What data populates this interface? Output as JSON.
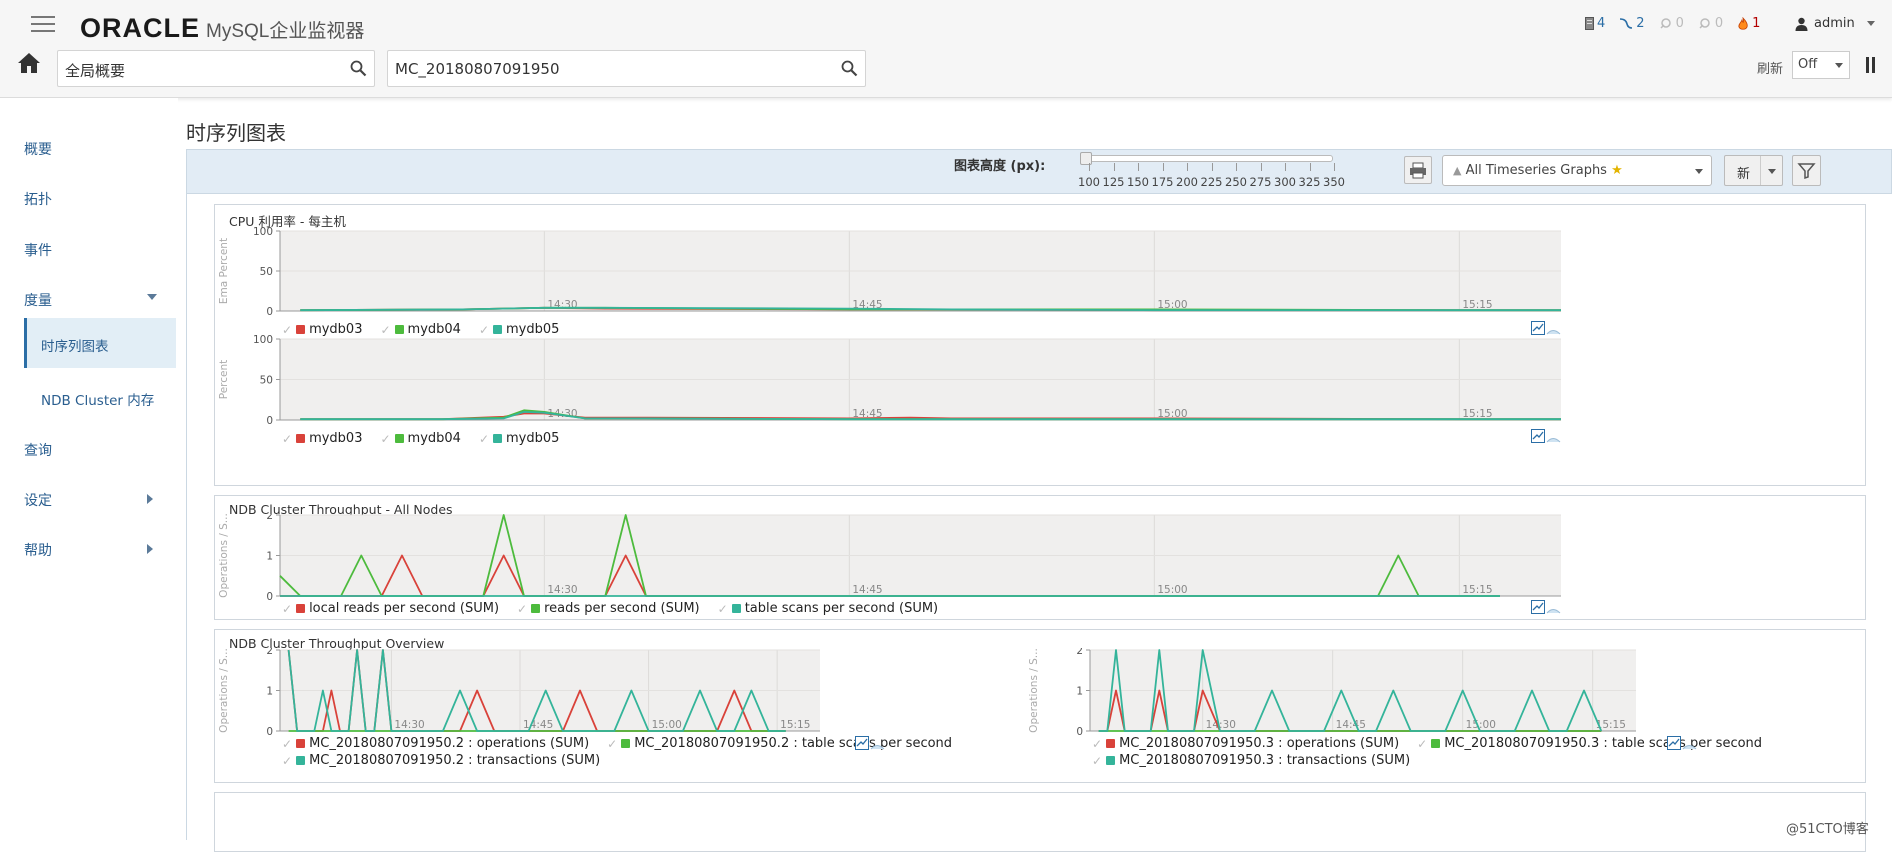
{
  "header": {
    "logo_brand": "ORACLE",
    "logo_product": "MySQL企业监视器",
    "scope_search": "全局概要",
    "group_search": "MC_20180807091950",
    "refresh_label": "刷新",
    "refresh_value": "Off",
    "status": [
      {
        "icon": "server-icon",
        "count": "4"
      },
      {
        "icon": "connection-icon",
        "count": "2"
      },
      {
        "icon": "agent-icon",
        "count": "0"
      },
      {
        "icon": "agent-warning-icon",
        "count": "0"
      },
      {
        "icon": "fire-icon",
        "count": "1"
      }
    ],
    "user": "admin"
  },
  "sidebar": {
    "items": [
      {
        "label": "概要"
      },
      {
        "label": "拓扑"
      },
      {
        "label": "事件"
      },
      {
        "label": "度量"
      },
      {
        "label": "时序列图表"
      },
      {
        "label": "NDB Cluster 内存"
      },
      {
        "label": "查询"
      },
      {
        "label": "设定"
      },
      {
        "label": "帮助"
      }
    ]
  },
  "page": {
    "title": "时序列图表",
    "height_label": "图表高度 (px):",
    "height_ticks": [
      "100",
      "125",
      "150",
      "175",
      "200",
      "225",
      "250",
      "275",
      "300",
      "325",
      "350"
    ],
    "height_value": 100,
    "graph_select": "All Timeseries Graphs",
    "new_button": "新"
  },
  "colors": {
    "red": "#d9423a",
    "green": "#4dbb3d",
    "teal": "#34b49a",
    "plot_bg": "#f0efee",
    "link": "#2a5e8f"
  },
  "watermark": "@51CTO博客",
  "chart_data": [
    {
      "type": "line",
      "title": "CPU 利用率 - 每主机",
      "ylabel": "Ema Percent",
      "ylim": [
        0,
        100
      ],
      "yticks": [
        "0",
        "50",
        "100"
      ],
      "xticks": [
        "14:30",
        "14:45",
        "15:00",
        "15:15"
      ],
      "x": [
        "14:18",
        "14:26",
        "14:30",
        "14:33",
        "14:45",
        "14:50",
        "15:00",
        "15:15",
        "15:20"
      ],
      "series": [
        {
          "name": "mydb03",
          "color": "#d9423a",
          "values": [
            1,
            2,
            4,
            3,
            2,
            2,
            1,
            1,
            1
          ]
        },
        {
          "name": "mydb04",
          "color": "#4dbb3d",
          "values": [
            1,
            2,
            4,
            4,
            2,
            2,
            2,
            1,
            1
          ]
        },
        {
          "name": "mydb05",
          "color": "#34b49a",
          "values": [
            1,
            2,
            4,
            4,
            3,
            2,
            1,
            1,
            1
          ]
        }
      ]
    },
    {
      "type": "line",
      "title": "",
      "ylabel": "Percent",
      "ylim": [
        0,
        100
      ],
      "yticks": [
        "0",
        "50",
        "100"
      ],
      "xticks": [
        "14:30",
        "14:45",
        "15:00",
        "15:15"
      ],
      "x": [
        "14:18",
        "14:25",
        "14:28",
        "14:29",
        "14:30",
        "14:32",
        "14:35",
        "14:45",
        "14:48",
        "14:50",
        "15:00",
        "15:15",
        "15:20"
      ],
      "series": [
        {
          "name": "mydb03",
          "color": "#d9423a",
          "values": [
            1,
            1,
            4,
            8,
            8,
            3,
            3,
            2,
            3,
            2,
            2,
            1,
            1
          ]
        },
        {
          "name": "mydb04",
          "color": "#4dbb3d",
          "values": [
            1,
            1,
            3,
            12,
            10,
            2,
            2,
            1,
            1,
            1,
            1,
            1,
            1
          ]
        },
        {
          "name": "mydb05",
          "color": "#34b49a",
          "values": [
            1,
            1,
            2,
            10,
            9,
            2,
            2,
            1,
            1,
            1,
            1,
            1,
            1
          ]
        }
      ]
    },
    {
      "type": "line",
      "title": "NDB Cluster Throughput - All Nodes",
      "ylabel": "Operations / S...",
      "ylim": [
        0,
        2
      ],
      "yticks": [
        "0",
        "1",
        "2"
      ],
      "xticks": [
        "14:30",
        "14:45",
        "15:00",
        "15:15"
      ],
      "x": [
        "14:17",
        "14:18",
        "14:20",
        "14:21",
        "14:22",
        "14:23",
        "14:24",
        "14:25",
        "14:26",
        "14:27",
        "14:28",
        "14:29",
        "14:30",
        "14:33",
        "14:34",
        "14:35",
        "14:36",
        "14:43",
        "14:44",
        "15:11",
        "15:12",
        "15:13",
        "15:17"
      ],
      "series": [
        {
          "name": "local reads per second (SUM)",
          "color": "#d9423a",
          "values": [
            0,
            0,
            0,
            0,
            0,
            1,
            0,
            0,
            0,
            0,
            1,
            0,
            0,
            0,
            1,
            0,
            0,
            0,
            0,
            0,
            0,
            0,
            0
          ]
        },
        {
          "name": "reads per second (SUM)",
          "color": "#4dbb3d",
          "values": [
            0.5,
            0,
            0,
            1,
            0,
            0,
            0,
            0,
            0,
            0,
            2,
            0,
            0,
            0,
            2,
            0,
            0,
            0,
            0,
            0,
            1,
            0,
            0
          ]
        },
        {
          "name": "table scans per second (SUM)",
          "color": "#34b49a",
          "values": [
            0,
            0,
            0,
            0,
            0,
            0,
            0,
            0,
            0,
            0,
            0,
            0,
            0,
            0,
            0,
            0,
            0,
            0,
            0,
            0,
            0,
            0,
            0
          ]
        }
      ]
    },
    {
      "type": "line",
      "title": "NDB Cluster Throughput Overview",
      "ylabel": "Operations / S...",
      "ylim": [
        0,
        2
      ],
      "yticks": [
        "0",
        "1",
        "2"
      ],
      "xticks": [
        "14:30",
        "14:45",
        "15:00",
        "15:15"
      ],
      "x": [
        "14:18",
        "14:19",
        "14:20",
        "14:21",
        "14:22",
        "14:23",
        "14:24",
        "14:25",
        "14:26",
        "14:27",
        "14:28",
        "14:29",
        "14:30",
        "14:32",
        "14:34",
        "14:36",
        "14:38",
        "14:40",
        "14:42",
        "14:44",
        "14:46",
        "14:48",
        "14:50",
        "14:52",
        "14:54",
        "14:56",
        "14:58",
        "15:00",
        "15:02",
        "15:04",
        "15:06",
        "15:08",
        "15:10",
        "15:12",
        "15:14",
        "15:16"
      ],
      "series": [
        {
          "name": "MC_20180807091950.2 : operations (SUM)",
          "color": "#d9423a",
          "values": [
            2,
            0,
            0,
            0,
            0,
            1,
            0,
            0,
            2,
            0,
            0,
            2,
            0,
            0,
            0,
            0,
            0,
            1,
            0,
            0,
            0,
            0,
            0,
            1,
            0,
            0,
            0,
            0,
            0,
            0,
            0,
            0,
            1,
            0,
            0,
            0
          ]
        },
        {
          "name": "MC_20180807091950.2 : table scans per second",
          "color": "#4dbb3d",
          "values": [
            0,
            0,
            0,
            0,
            0,
            0,
            0,
            0,
            0,
            0,
            0,
            0,
            0,
            0,
            0,
            0,
            0,
            0,
            0,
            0,
            0,
            0,
            0,
            0,
            0,
            0,
            0,
            0,
            0,
            0,
            0,
            0,
            0,
            0,
            0,
            0
          ]
        },
        {
          "name": "MC_20180807091950.2 : transactions (SUM)",
          "color": "#34b49a",
          "values": [
            2,
            0,
            0,
            0,
            1,
            0,
            0,
            0,
            2,
            0,
            0,
            2,
            0,
            0,
            0,
            0,
            1,
            0,
            0,
            0,
            0,
            1,
            0,
            0,
            0,
            0,
            1,
            0,
            0,
            0,
            1,
            0,
            0,
            1,
            0,
            0
          ]
        }
      ]
    },
    {
      "type": "line",
      "title": "",
      "ylabel": "Operations / S...",
      "ylim": [
        0,
        2
      ],
      "yticks": [
        "0",
        "1",
        "2"
      ],
      "xticks": [
        "14:30",
        "14:45",
        "15:00",
        "15:15"
      ],
      "x": [
        "14:18",
        "14:19",
        "14:20",
        "14:21",
        "14:22",
        "14:23",
        "14:24",
        "14:25",
        "14:26",
        "14:27",
        "14:28",
        "14:29",
        "14:30",
        "14:32",
        "14:34",
        "14:36",
        "14:38",
        "14:40",
        "14:42",
        "14:44",
        "14:46",
        "14:48",
        "14:50",
        "14:52",
        "14:54",
        "14:56",
        "14:58",
        "15:00",
        "15:02",
        "15:04",
        "15:06",
        "15:08",
        "15:10",
        "15:12",
        "15:14",
        "15:16"
      ],
      "series": [
        {
          "name": "MC_20180807091950.3 : operations (SUM)",
          "color": "#d9423a",
          "values": [
            0,
            0,
            1,
            0,
            0,
            0,
            0,
            1,
            0,
            0,
            0,
            0,
            1,
            0,
            0,
            0,
            0,
            0,
            0,
            0,
            0,
            0,
            0,
            0,
            0,
            0,
            0,
            0,
            0,
            0,
            0,
            0,
            0,
            0,
            0,
            0
          ]
        },
        {
          "name": "MC_20180807091950.3 : table scans per second",
          "color": "#4dbb3d",
          "values": [
            0,
            0,
            0,
            0,
            0,
            0,
            0,
            0,
            0,
            0,
            0,
            0,
            0,
            0,
            0,
            0,
            0,
            0,
            0,
            0,
            0,
            0,
            0,
            0,
            0,
            0,
            0,
            0,
            0,
            0,
            0,
            0,
            0,
            0,
            0,
            0
          ]
        },
        {
          "name": "MC_20180807091950.3 : transactions (SUM)",
          "color": "#34b49a",
          "values": [
            0,
            0,
            2,
            0,
            0,
            0,
            0,
            2,
            0,
            0,
            0,
            0,
            2,
            0,
            0,
            0,
            1,
            0,
            0,
            0,
            1,
            0,
            0,
            1,
            0,
            0,
            0,
            1,
            0,
            0,
            0,
            1,
            0,
            0,
            1,
            0
          ]
        }
      ]
    }
  ]
}
